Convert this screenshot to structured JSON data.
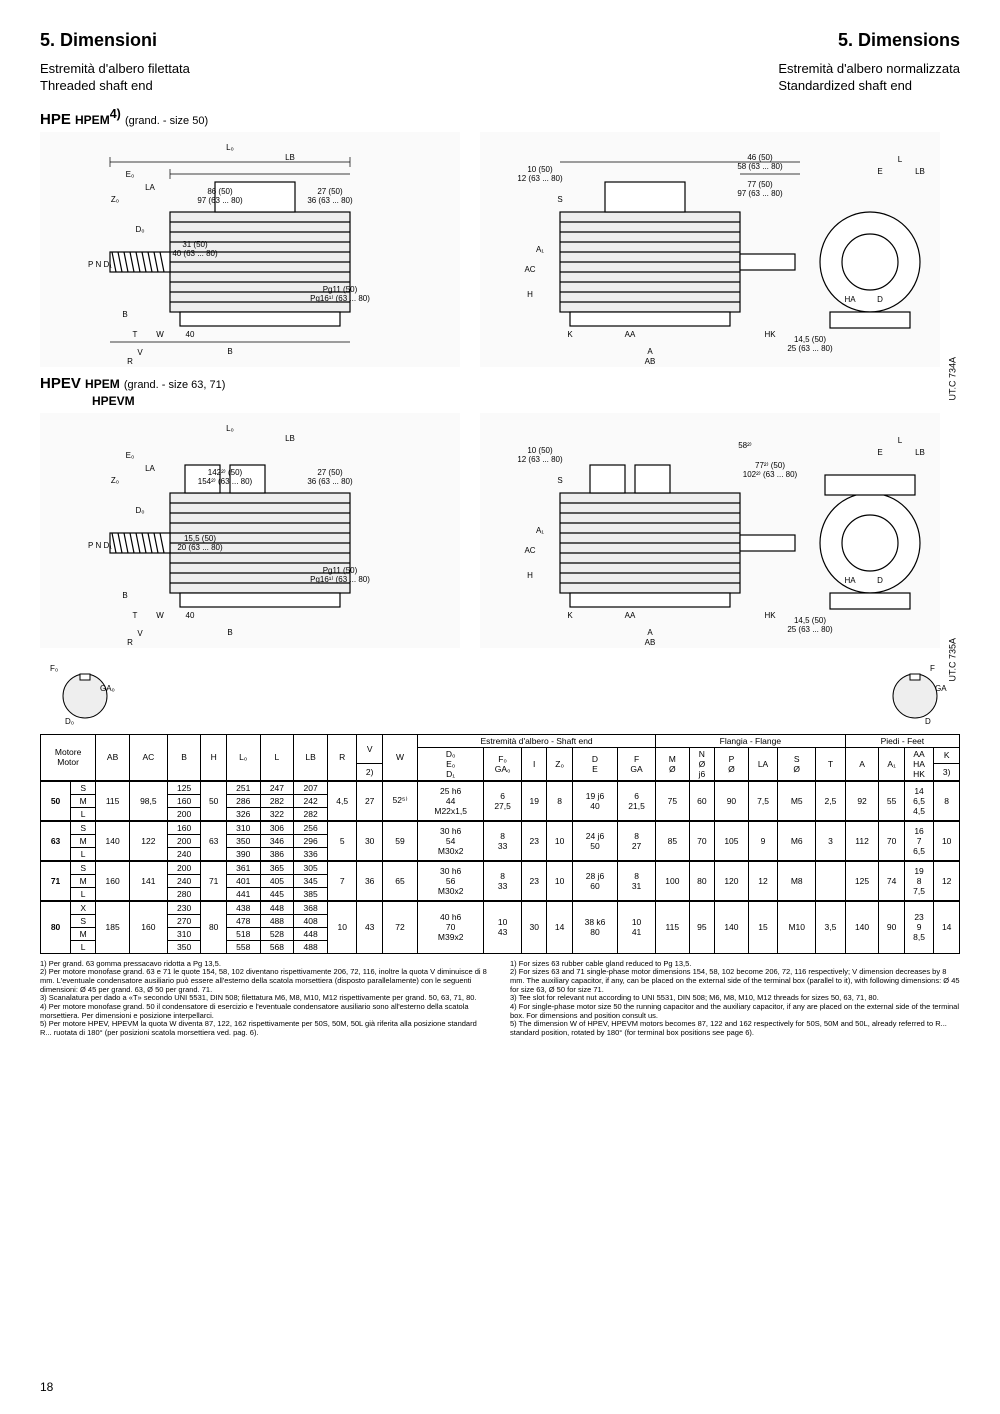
{
  "titles": {
    "left": "5. Dimensioni",
    "right": "5. Dimensions"
  },
  "subtitles": {
    "left1": "Estremità d'albero filettata",
    "left2": "Threaded shaft end",
    "right1": "Estremità d'albero normalizzata",
    "right2": "Standardized shaft end"
  },
  "models": {
    "hpe": {
      "main": "HPE",
      "sub": "HPEM",
      "sup": "4)",
      "note": "(grand. - size 50)"
    },
    "hpev": {
      "main": "HPEV",
      "sub": "HPEM",
      "sub2": "HPEVM",
      "note": "(grand. - size 63, 71)"
    }
  },
  "drawing_labels": {
    "d1_top": [
      "L₀",
      "LB",
      "E₀",
      "LA",
      "Z₀",
      "86 (50)",
      "97 (63 ... 80)",
      "27 (50)",
      "36 (63 ... 80)",
      "D₀",
      "31 (50)",
      "40 (63 ... 80)",
      "Pg11  (50)",
      "Pg16¹⁾ (63 ... 80)",
      "P N D₁",
      "B",
      "T",
      "W",
      "40",
      "V",
      "R",
      "I"
    ],
    "d1_right": [
      "L",
      "LB",
      "E",
      "F",
      "46 (50)",
      "58 (63 ... 80)",
      "77 (50)",
      "97 (63 ... 80)",
      "10 (50)",
      "12 (63 ... 80)",
      "S",
      "A₁",
      "AC",
      "H",
      "K",
      "AA",
      "HK",
      "A",
      "AB",
      "HA",
      "D",
      "14,5 (50)",
      "25  (63 ... 80)"
    ],
    "d2_top": [
      "L₀",
      "LB",
      "E₀",
      "LA",
      "Z₀",
      "142²⁾ (50)",
      "154²⁾ (63 ... 80)",
      "27 (50)",
      "36 (63 ... 80)",
      "D₀",
      "15,5 (50)",
      "20  (63 ... 80)",
      "Pg11  (50)",
      "Pg16¹⁾ (63 ... 80)",
      "P N D₁",
      "B",
      "T",
      "W",
      "40",
      "V",
      "R",
      "I"
    ],
    "d2_right": [
      "L",
      "LB",
      "E",
      "58²⁾",
      "77²⁾ (50)",
      "102²⁾ (63 ... 80)",
      "10 (50)",
      "12 (63 ... 80)",
      "S",
      "A₁",
      "AC",
      "H",
      "K",
      "AA",
      "HK",
      "A",
      "AB",
      "HA",
      "D",
      "14,5 (50)",
      "25  (63 ... 80)"
    ],
    "small_left": [
      "F₀",
      "GA₀",
      "D₀"
    ],
    "small_right": [
      "F",
      "GA",
      "D"
    ],
    "utc1": "UT.C 734A",
    "utc2": "UT.C 735A"
  },
  "table": {
    "head_groups": {
      "motor": "Motore\nMotor",
      "shaft": "Estremità d'albero - Shaft end",
      "flange": "Flangia - Flange",
      "feet": "Piedi - Feet"
    },
    "columns": [
      "AB",
      "AC",
      "B",
      "H",
      "L₀",
      "L",
      "LB",
      "R",
      "V",
      "W",
      "D₀\nE₀\nD₁",
      "F₀\nGA₀",
      "I",
      "Z₀",
      "D\nE",
      "F\nGA",
      "M\nØ",
      "N\nØ\nj6",
      "P\nØ",
      "LA",
      "S\nØ",
      "T",
      "A",
      "A₁",
      "AA\nHA\nHK",
      "K"
    ],
    "note_v": "2)",
    "note_k": "3)",
    "rows": [
      {
        "size": "50",
        "variants": [
          "S",
          "M",
          "L"
        ],
        "AB": "115",
        "AC": "98,5",
        "B": [
          "125",
          "160",
          "200"
        ],
        "H": "50",
        "L0": [
          "251",
          "286",
          "326"
        ],
        "L": [
          "247",
          "282",
          "322"
        ],
        "LB": [
          "207",
          "242",
          "282"
        ],
        "R": "4,5",
        "V": "27",
        "W": "52⁵⁾",
        "D0": "25 h6\n44\nM22x1,5",
        "F0": "6\n27,5",
        "I": "19",
        "Z0": "8",
        "D": "19 j6\n40",
        "F": "6\n21,5",
        "M": "75",
        "N": "60",
        "P": "90",
        "LA": "7,5",
        "S": "M5",
        "T": "2,5",
        "A": "92",
        "A1": "55",
        "AA": "14\n6,5\n4,5",
        "K": "8"
      },
      {
        "size": "63",
        "variants": [
          "S",
          "M",
          "L"
        ],
        "AB": "140",
        "AC": "122",
        "B": [
          "160",
          "200",
          "240"
        ],
        "H": "63",
        "L0": [
          "310",
          "350",
          "390"
        ],
        "L": [
          "306",
          "346",
          "386"
        ],
        "LB": [
          "256",
          "296",
          "336"
        ],
        "R": "5",
        "V": "30",
        "W": "59",
        "D0": "30 h6\n54\nM30x2",
        "F0": "8\n33",
        "I": "23",
        "Z0": "10",
        "D": "24 j6\n50",
        "F": "8\n27",
        "M": "85",
        "N": "70",
        "P": "105",
        "LA": "9",
        "S": "M6",
        "T": "3",
        "A": "112",
        "A1": "70",
        "AA": "16\n7\n6,5",
        "K": "10"
      },
      {
        "size": "71",
        "variants": [
          "S",
          "M",
          "L"
        ],
        "AB": "160",
        "AC": "141",
        "B": [
          "200",
          "240",
          "280"
        ],
        "H": "71",
        "L0": [
          "361",
          "401",
          "441"
        ],
        "L": [
          "365",
          "405",
          "445"
        ],
        "LB": [
          "305",
          "345",
          "385"
        ],
        "R": "7",
        "V": "36",
        "W": "65",
        "D0": "30 h6\n56\nM30x2",
        "F0": "8\n33",
        "I": "23",
        "Z0": "10",
        "D": "28 j6\n60",
        "F": "8\n31",
        "M": "100",
        "N": "80",
        "P": "120",
        "LA": "12",
        "S": "M8",
        "T": "",
        "A": "125",
        "A1": "74",
        "AA": "19\n8\n7,5",
        "K": "12"
      },
      {
        "size": "80",
        "variants": [
          "X",
          "S",
          "M",
          "L"
        ],
        "AB": "185",
        "AC": "160",
        "B": [
          "230",
          "270",
          "310",
          "350"
        ],
        "H": "80",
        "L0": [
          "438",
          "478",
          "518",
          "558"
        ],
        "L": [
          "448",
          "488",
          "528",
          "568"
        ],
        "LB": [
          "368",
          "408",
          "448",
          "488"
        ],
        "R": "10",
        "V": "43",
        "W": "72",
        "D0": "40 h6\n70\nM39x2",
        "F0": "10\n43",
        "I": "30",
        "Z0": "14",
        "D": "38 k6\n80",
        "F": "10\n41",
        "M": "115",
        "N": "95",
        "P": "140",
        "LA": "15",
        "S": "M10",
        "T": "3,5",
        "A": "140",
        "A1": "90",
        "AA": "23\n9\n8,5",
        "K": "14"
      }
    ]
  },
  "footnotes": {
    "it": [
      "1) Per grand. 63 gomma pressacavo ridotta a Pg 13,5.",
      "2) Per motore monofase grand. 63 e 71 le quote 154, 58, 102 diventano rispettivamente 206, 72, 116, inoltre la quota V diminuisce di 8 mm. L'eventuale condensatore ausiliario può essere all'esterno della scatola morsettiera (disposto parallelamente) con le seguenti dimensioni: Ø 45 per grand. 63, Ø 50 per grand. 71.",
      "3) Scanalatura per dado a «T» secondo UNI 5531, DIN 508; filettatura M6, M8, M10, M12 rispettivamente per grand. 50, 63, 71, 80.",
      "4) Per motore monofase grand. 50 il condensatore di esercizio e l'eventuale condensatore ausiliario sono all'esterno della scatola morsettiera. Per dimensioni e posizione interpellarci.",
      "5) Per motore HPEV, HPEVM la quota W diventa 87, 122, 162 rispettivamente per 50S, 50M, 50L già riferita alla posizione standard R... ruotata di 180° (per posizioni scatola morsettiera ved. pag. 6)."
    ],
    "en": [
      "1) For sizes 63 rubber cable gland reduced to Pg 13,5.",
      "2) For sizes 63 and 71 single-phase motor dimensions 154, 58, 102 become 206, 72, 116 respectively; V dimension decreases by 8 mm. The auxiliary capacitor, if any, can be placed on the external side of the terminal box (parallel to it), with following dimensions: Ø 45 for size 63, Ø 50 for size 71.",
      "3) Tee slot for relevant nut according to UNI 5531, DIN 508; M6, M8, M10, M12 threads for sizes 50, 63, 71, 80.",
      "4) For single-phase motor size 50 the running capacitor and the auxiliary capacitor, if any are placed on the external side of the terminal box. For dimensions and position consult us.",
      "5) The dimension W of HPEV, HPEVM motors becomes 87, 122 and 162 respectively for 50S, 50M and 50L, already referred to R... standard position, rotated by 180° (for terminal box positions see page 6)."
    ]
  },
  "page_num": "18",
  "colors": {
    "ink": "#000000",
    "bg": "#ffffff",
    "drawing_bg": "#fafafa"
  }
}
